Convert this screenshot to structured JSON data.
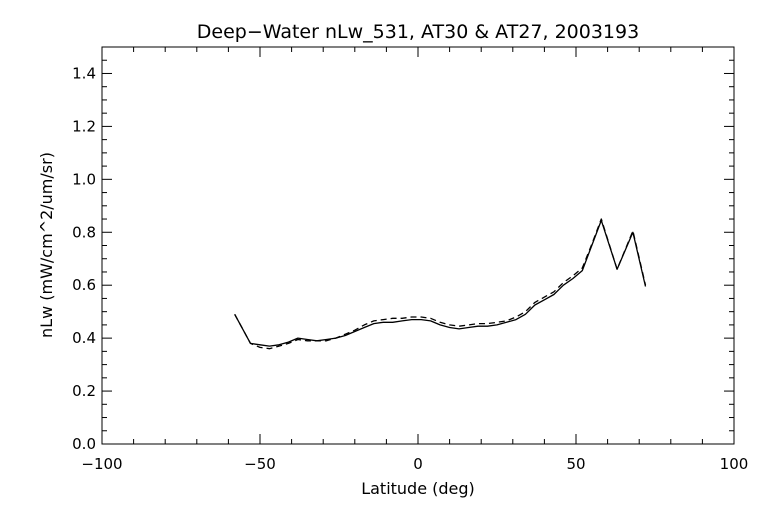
{
  "chart_data": {
    "type": "line",
    "title": "Deep−Water nLw_531, AT30 & AT27, 2003193",
    "xlabel": "Latitude (deg)",
    "ylabel": "nLw (mW/cm^2/um/sr)",
    "xlim": [
      -100,
      100
    ],
    "ylim": [
      0.0,
      1.5
    ],
    "x_ticks": [
      -100,
      -50,
      0,
      50,
      100
    ],
    "x_tick_labels": [
      "−100",
      "−50",
      "0",
      "50",
      "100"
    ],
    "y_ticks": [
      0.0,
      0.2,
      0.4,
      0.6,
      0.8,
      1.0,
      1.2,
      1.4
    ],
    "y_tick_labels": [
      "0.0",
      "0.2",
      "0.4",
      "0.6",
      "0.8",
      "1.0",
      "1.2",
      "1.4"
    ],
    "grid": false,
    "legend": "none",
    "series": [
      {
        "style": "solid",
        "x": [
          -58,
          -53,
          -50,
          -47,
          -44,
          -41,
          -38,
          -35,
          -32,
          -29,
          -26,
          -23,
          -20,
          -17,
          -14,
          -11,
          -8,
          -5,
          -2,
          1,
          4,
          7,
          10,
          13,
          16,
          19,
          22,
          25,
          28,
          31,
          34,
          37,
          40,
          43,
          46,
          49,
          52,
          55,
          58,
          63,
          68,
          72
        ],
        "y": [
          0.49,
          0.38,
          0.375,
          0.37,
          0.375,
          0.385,
          0.4,
          0.395,
          0.39,
          0.395,
          0.4,
          0.41,
          0.425,
          0.44,
          0.455,
          0.46,
          0.46,
          0.465,
          0.47,
          0.47,
          0.465,
          0.45,
          0.44,
          0.435,
          0.44,
          0.445,
          0.445,
          0.45,
          0.46,
          0.47,
          0.49,
          0.525,
          0.545,
          0.565,
          0.6,
          0.625,
          0.655,
          0.75,
          0.845,
          0.66,
          0.8,
          0.595
        ]
      },
      {
        "style": "dashed",
        "x": [
          -58,
          -53,
          -50,
          -47,
          -44,
          -41,
          -38,
          -35,
          -32,
          -29,
          -26,
          -23,
          -20,
          -17,
          -14,
          -11,
          -8,
          -5,
          -2,
          1,
          4,
          7,
          10,
          13,
          16,
          19,
          22,
          25,
          28,
          31,
          34,
          37,
          40,
          43,
          46,
          49,
          52,
          55,
          58,
          63,
          68,
          72
        ],
        "y": [
          0.49,
          0.38,
          0.365,
          0.36,
          0.37,
          0.38,
          0.395,
          0.39,
          0.39,
          0.39,
          0.4,
          0.415,
          0.43,
          0.45,
          0.465,
          0.47,
          0.475,
          0.475,
          0.48,
          0.48,
          0.475,
          0.46,
          0.45,
          0.445,
          0.45,
          0.455,
          0.455,
          0.46,
          0.465,
          0.48,
          0.5,
          0.535,
          0.555,
          0.575,
          0.61,
          0.635,
          0.665,
          0.755,
          0.85,
          0.66,
          0.805,
          0.6
        ]
      }
    ]
  }
}
